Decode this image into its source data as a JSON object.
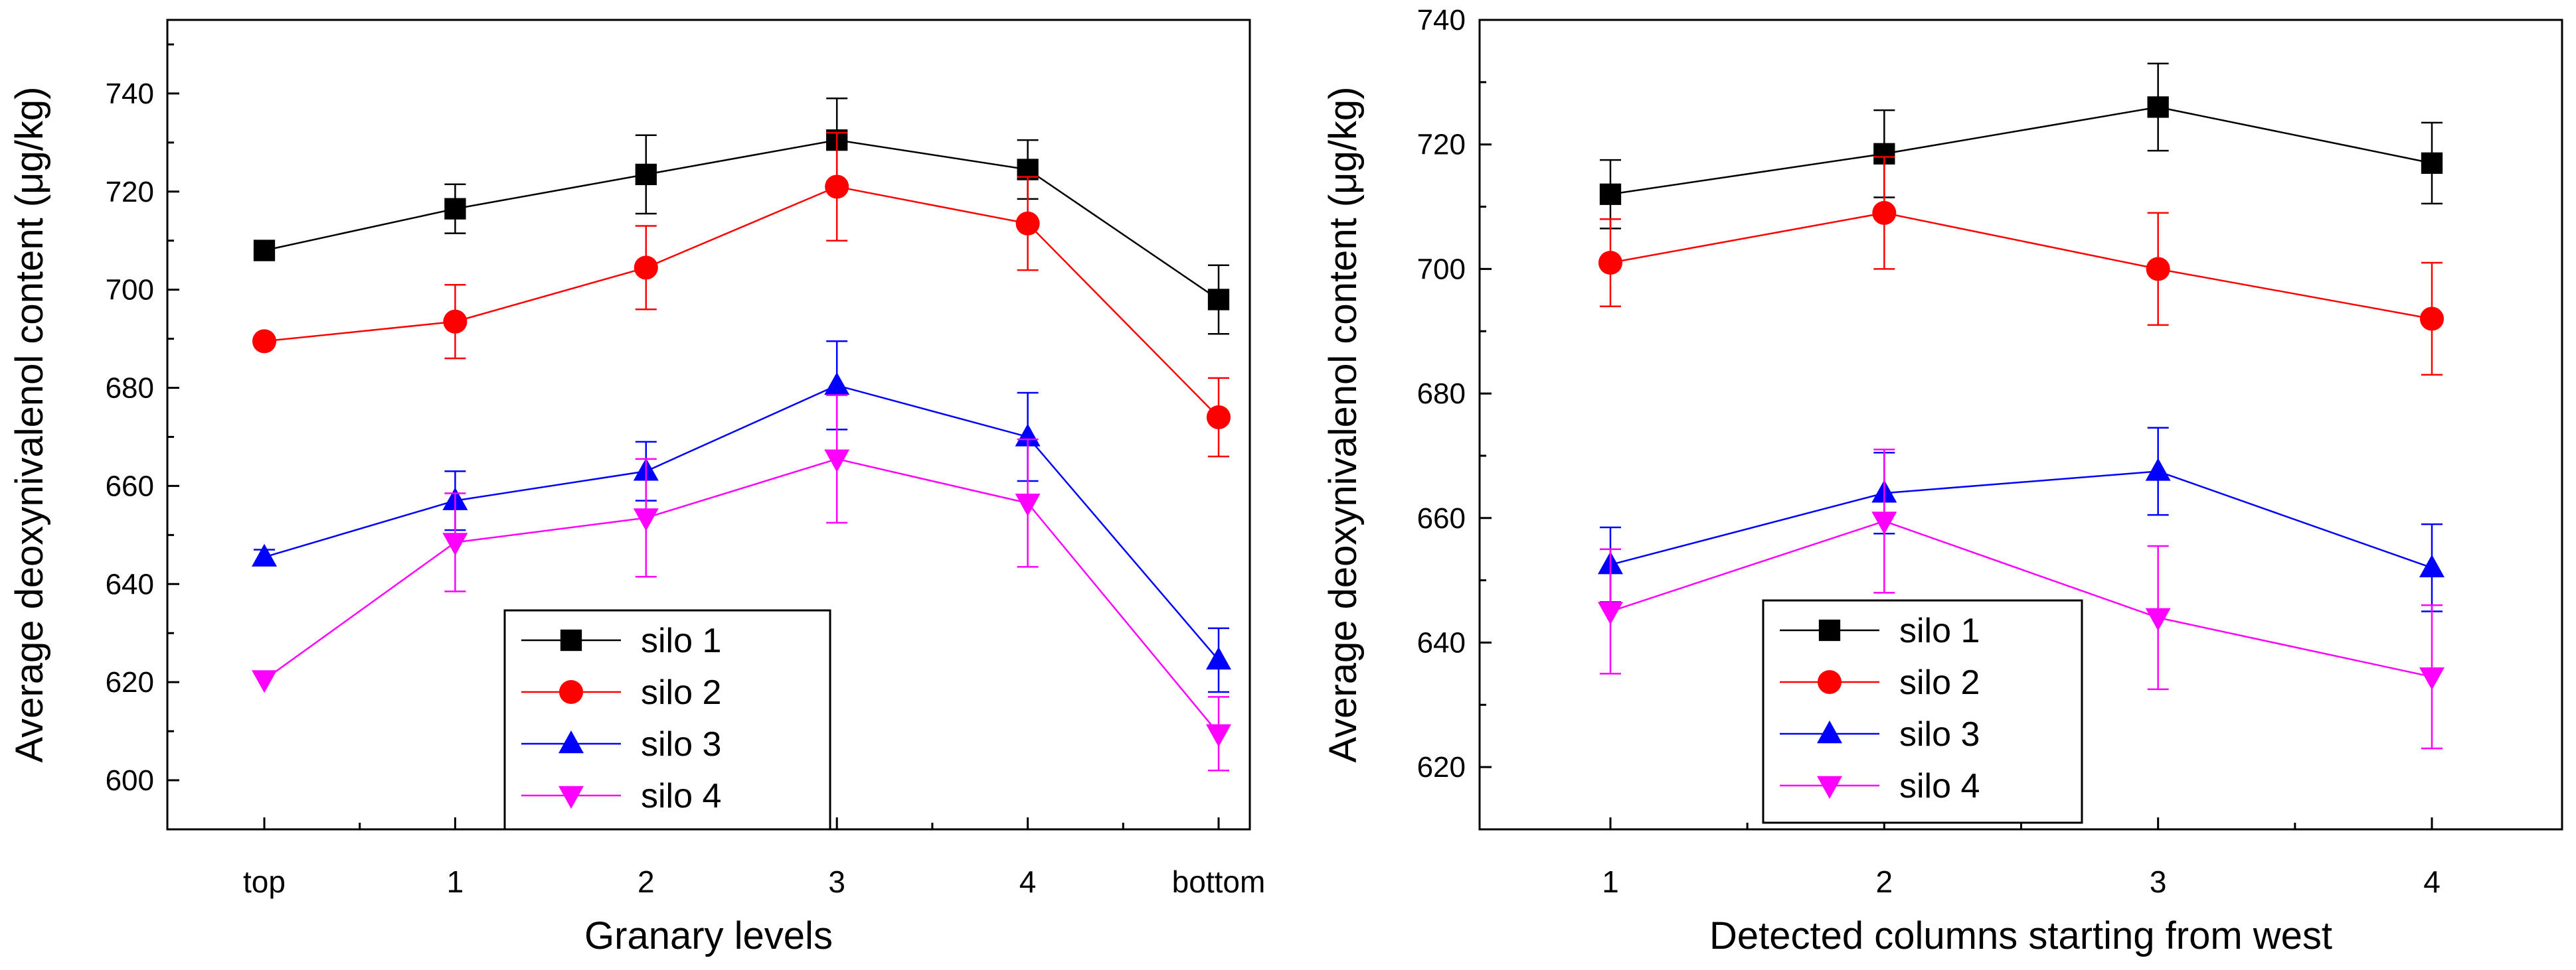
{
  "chart_data": [
    {
      "type": "line",
      "xlabel": "Granary levels",
      "ylabel": "Average deoxynivalenol content (μg/kg)",
      "categories": [
        "top",
        "1",
        "2",
        "3",
        "4",
        "bottom"
      ],
      "ylim": [
        590,
        755
      ],
      "yticks": [
        "600",
        "620",
        "640",
        "660",
        "680",
        "700",
        "720",
        "740"
      ],
      "legend_position": "bottom-center",
      "series": [
        {
          "name": "silo 1",
          "color": "#000000",
          "marker": "square",
          "values": [
            708,
            716.5,
            723.5,
            730.5,
            724.5,
            698
          ],
          "errors": [
            0,
            5,
            8,
            8.5,
            6,
            7
          ]
        },
        {
          "name": "silo 2",
          "color": "#ff0000",
          "marker": "circle",
          "values": [
            689.5,
            693.5,
            704.5,
            721,
            713.5,
            674
          ],
          "errors": [
            0,
            7.5,
            8.5,
            11,
            9.5,
            8
          ]
        },
        {
          "name": "silo 3",
          "color": "#0000ff",
          "marker": "triangle-up",
          "values": [
            645.5,
            657,
            663,
            680.5,
            670,
            624.5
          ],
          "errors": [
            1.5,
            6,
            6,
            9,
            9,
            6.5
          ]
        },
        {
          "name": "silo 4",
          "color": "#ff00ff",
          "marker": "triangle-down",
          "values": [
            620.5,
            648.5,
            653.5,
            665.5,
            656.5,
            609.5
          ],
          "errors": [
            0,
            10,
            12,
            13,
            13,
            7.5
          ]
        }
      ]
    },
    {
      "type": "line",
      "xlabel": "Detected columns starting from west",
      "ylabel": "Average deoxynivalenol content (μg/kg)",
      "categories": [
        "1",
        "2",
        "3",
        "4"
      ],
      "ylim": [
        610,
        740
      ],
      "yticks": [
        "620",
        "640",
        "660",
        "680",
        "700",
        "720",
        "740"
      ],
      "legend_position": "bottom-left",
      "series": [
        {
          "name": "silo 1",
          "color": "#000000",
          "marker": "square",
          "values": [
            712,
            718.5,
            726,
            717
          ],
          "errors": [
            5.5,
            7,
            7,
            6.5
          ]
        },
        {
          "name": "silo 2",
          "color": "#ff0000",
          "marker": "circle",
          "values": [
            701,
            709,
            700,
            692
          ],
          "errors": [
            7,
            9,
            9,
            9
          ]
        },
        {
          "name": "silo 3",
          "color": "#0000ff",
          "marker": "triangle-up",
          "values": [
            652.5,
            664,
            667.5,
            652
          ],
          "errors": [
            6,
            6.5,
            7,
            7
          ]
        },
        {
          "name": "silo 4",
          "color": "#ff00ff",
          "marker": "triangle-down",
          "values": [
            645,
            659.5,
            644,
            634.5
          ],
          "errors": [
            10,
            11.5,
            11.5,
            11.5
          ]
        }
      ]
    }
  ]
}
